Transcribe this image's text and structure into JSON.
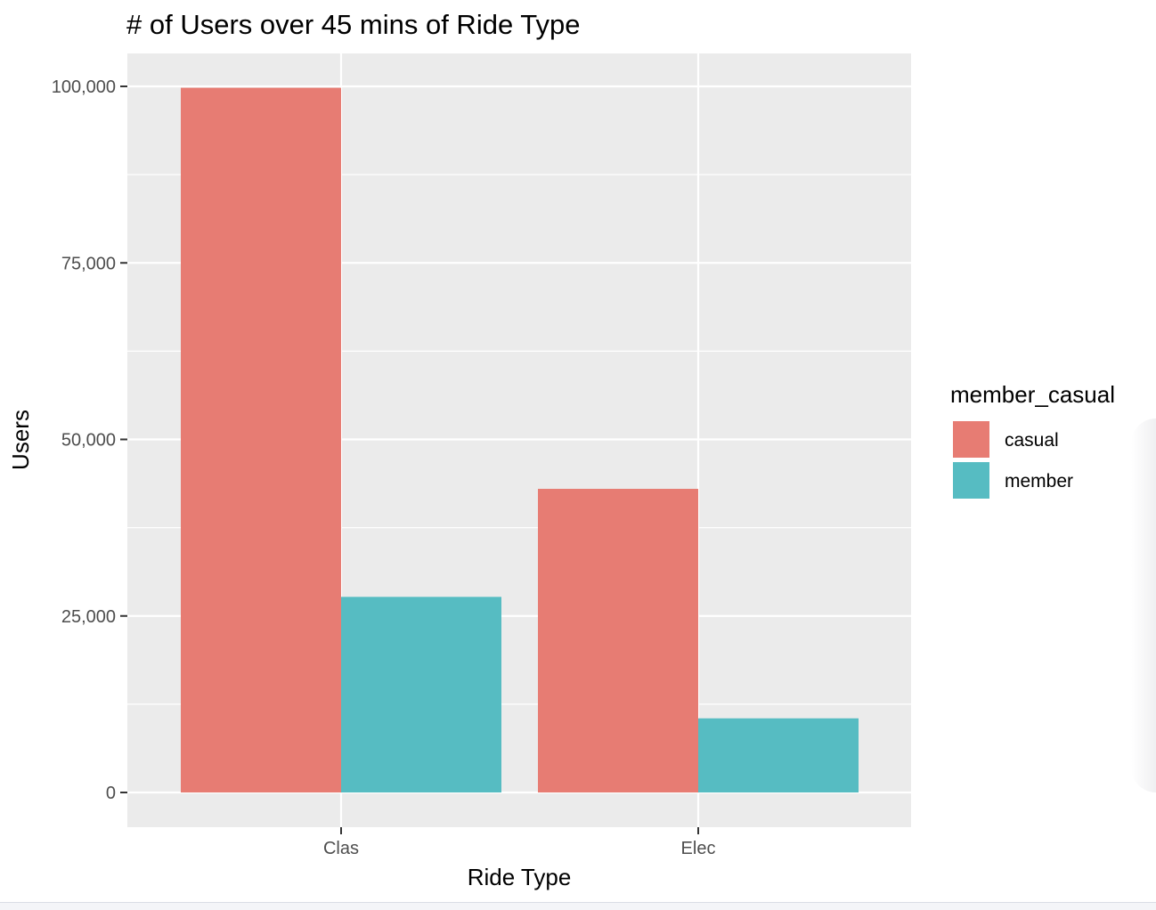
{
  "chart_data": {
    "type": "bar",
    "title": "# of Users over 45 mins of Ride Type",
    "xlabel": "Ride Type",
    "ylabel": "Users",
    "categories": [
      "Clas",
      "Elec"
    ],
    "series": [
      {
        "name": "casual",
        "color": "#E77C73",
        "values": [
          99800,
          43000
        ]
      },
      {
        "name": "member",
        "color": "#56BCC2",
        "values": [
          27700,
          10500
        ]
      }
    ],
    "ylim": [
      0,
      100000
    ],
    "yticks": [
      0,
      25000,
      50000,
      75000,
      100000
    ],
    "ytick_labels": [
      "0",
      "25,000",
      "50,000",
      "75,000",
      "100,000"
    ],
    "legend": {
      "title": "member_casual",
      "placement": "right"
    },
    "grid": true,
    "panel_background": "#EBEBEB"
  }
}
